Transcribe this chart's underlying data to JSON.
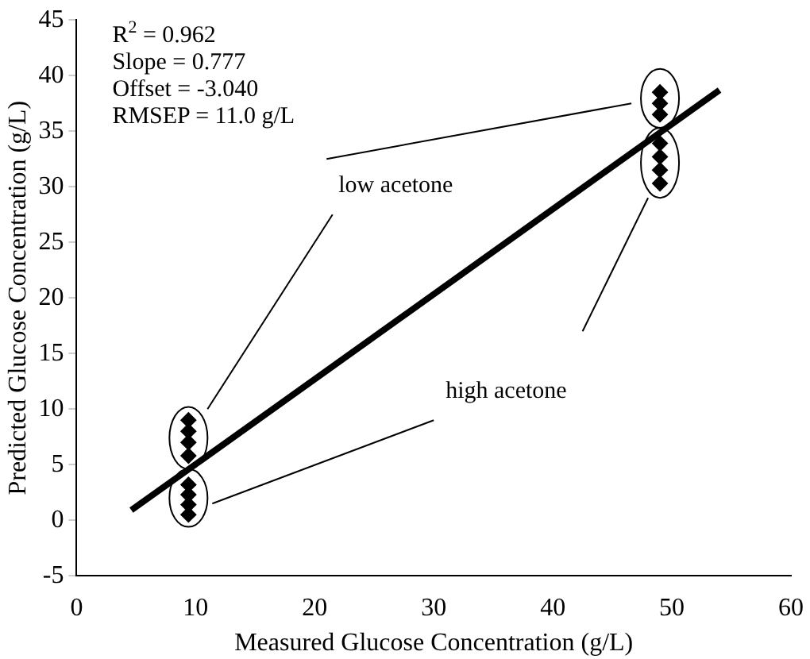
{
  "chart_data": {
    "type": "scatter",
    "xlabel": "Measured Glucose Concentration (g/L)",
    "ylabel": "Predicted Glucose Concentration (g/L)",
    "xlim": [
      0,
      60
    ],
    "xticks": [
      0,
      10,
      20,
      30,
      40,
      50,
      60
    ],
    "ylim": [
      -5,
      45
    ],
    "yticks": [
      -5,
      0,
      5,
      10,
      15,
      20,
      25,
      30,
      35,
      40,
      45
    ],
    "grid": false,
    "legend": false,
    "marker": "diamond",
    "series": [
      {
        "color": "#000000",
        "x": [
          9.4,
          9.4,
          9.4,
          9.4,
          49,
          49,
          49,
          49
        ],
        "values": [
          5.8,
          7,
          8,
          9,
          30.3,
          31.5,
          32.7,
          33.9
        ]
      },
      {
        "color": "#000000",
        "x": [
          9.4,
          9.4,
          9.4,
          9.4,
          49,
          49,
          49
        ],
        "values": [
          0.5,
          1.4,
          2.3,
          3.2,
          36.5,
          37.5,
          38.5
        ]
      },
      {
        "type": "line",
        "color": "#000000",
        "marker": "none",
        "x": [
          4.6,
          54
        ],
        "values": [
          0.9,
          38.7
        ]
      }
    ],
    "annotations": [
      "R$^{2}$ = 0.962",
      "Slope = 0.777",
      "Offset = -3.040",
      "RMSEP = 11.0 g/L",
      "low acetone",
      "high acetone"
    ]
  }
}
